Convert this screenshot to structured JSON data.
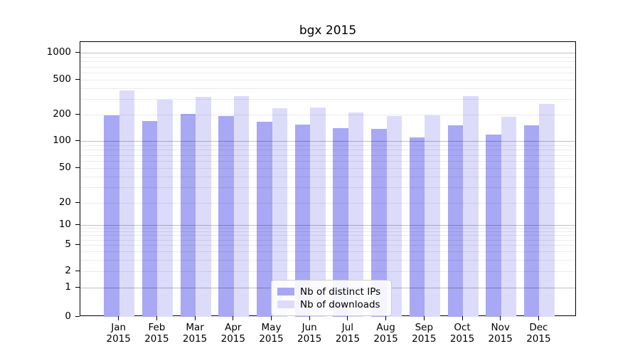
{
  "chart_data": {
    "type": "bar",
    "title": "bgx 2015",
    "categories": [
      "Jan 2015",
      "Feb 2015",
      "Mar 2015",
      "Apr 2015",
      "May 2015",
      "Jun 2015",
      "Jul 2015",
      "Aug 2015",
      "Sep 2015",
      "Oct 2015",
      "Nov 2015",
      "Dec 2015"
    ],
    "series": [
      {
        "name": "Nb of distinct IPs",
        "color": "#a8a8f4",
        "values": [
          195,
          168,
          203,
          193,
          165,
          154,
          140,
          137,
          109,
          151,
          118,
          151
        ]
      },
      {
        "name": "Nb of downloads",
        "color": "#dcdcfa",
        "values": [
          377,
          294,
          321,
          323,
          238,
          239,
          212,
          192,
          197,
          325,
          190,
          267
        ]
      }
    ],
    "xlabel": "",
    "ylabel": "",
    "yscale": "log",
    "y_ticks": [
      1000,
      500,
      200,
      100,
      50,
      20,
      10,
      5,
      2,
      1,
      0
    ],
    "ylim": [
      0,
      1320
    ],
    "grid": true,
    "legend_position": "lower center"
  },
  "colors": {
    "bar_distinct_ips": "#a8a8f4",
    "bar_downloads": "#dcdcfa",
    "grid_major": "#c2c2c2",
    "grid_minor": "#ebebeb",
    "axis": "#000000",
    "background": "#ffffff"
  }
}
